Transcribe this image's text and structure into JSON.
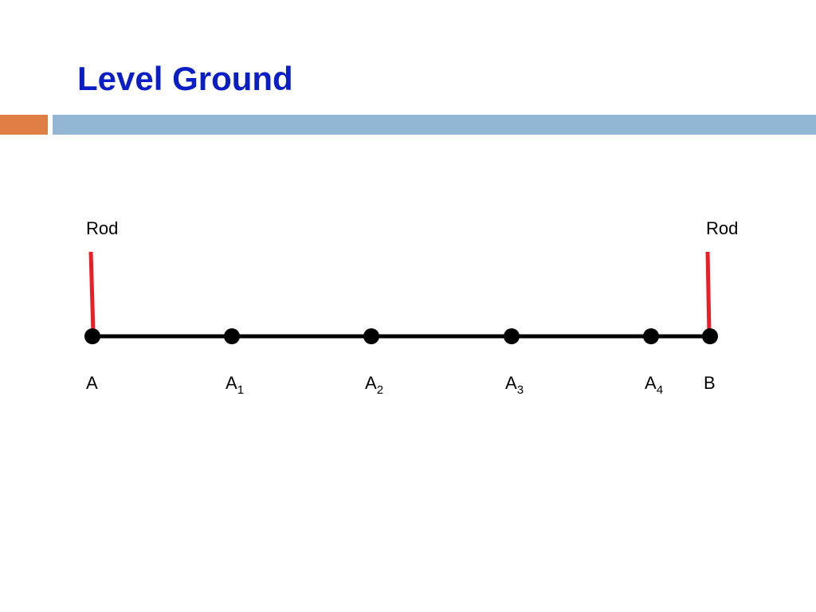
{
  "slide": {
    "title": "Level Ground"
  },
  "colors": {
    "title": "#0a1ec8",
    "accent_left": "#e07f45",
    "accent_right": "#93b6d4",
    "rod": "#ee1c24",
    "ground": "#000000"
  },
  "rods": [
    {
      "label": "Rod"
    },
    {
      "label": "Rod"
    }
  ],
  "points": [
    {
      "base": "A",
      "sub": ""
    },
    {
      "base": "A",
      "sub": "1"
    },
    {
      "base": "A",
      "sub": "2"
    },
    {
      "base": "A",
      "sub": "3"
    },
    {
      "base": "A",
      "sub": "4"
    },
    {
      "base": "B",
      "sub": ""
    }
  ]
}
